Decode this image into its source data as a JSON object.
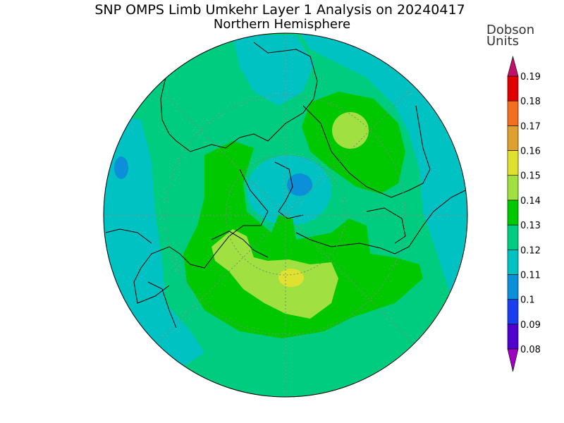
{
  "title": "SNP OMPS Limb Umkehr Layer 1 Analysis on 20240417",
  "subtitle": "Northern Hemisphere",
  "colorbar": {
    "unit_line1": "Dobson",
    "unit_line2": "Units",
    "levels": [
      {
        "label": "0.08",
        "color": "#8a00d4"
      },
      {
        "label": "0.09",
        "color": "#5000cc"
      },
      {
        "label": "0.1",
        "color": "#1a3df0"
      },
      {
        "label": "0.11",
        "color": "#0a8fd8"
      },
      {
        "label": "0.12",
        "color": "#00c2c2"
      },
      {
        "label": "0.13",
        "color": "#00cc80"
      },
      {
        "label": "0.14",
        "color": "#00c800"
      },
      {
        "label": "0.15",
        "color": "#a0e040"
      },
      {
        "label": "0.16",
        "color": "#e0e030"
      },
      {
        "label": "0.17",
        "color": "#e0a030"
      },
      {
        "label": "0.18",
        "color": "#f07020"
      },
      {
        "label": "0.19",
        "color": "#e00000"
      }
    ],
    "top_arrow_color": "#c0106a",
    "bottom_arrow_color": "#a000c0"
  },
  "map": {
    "projection": "north polar stereographic",
    "background_color": "#00cc80"
  }
}
